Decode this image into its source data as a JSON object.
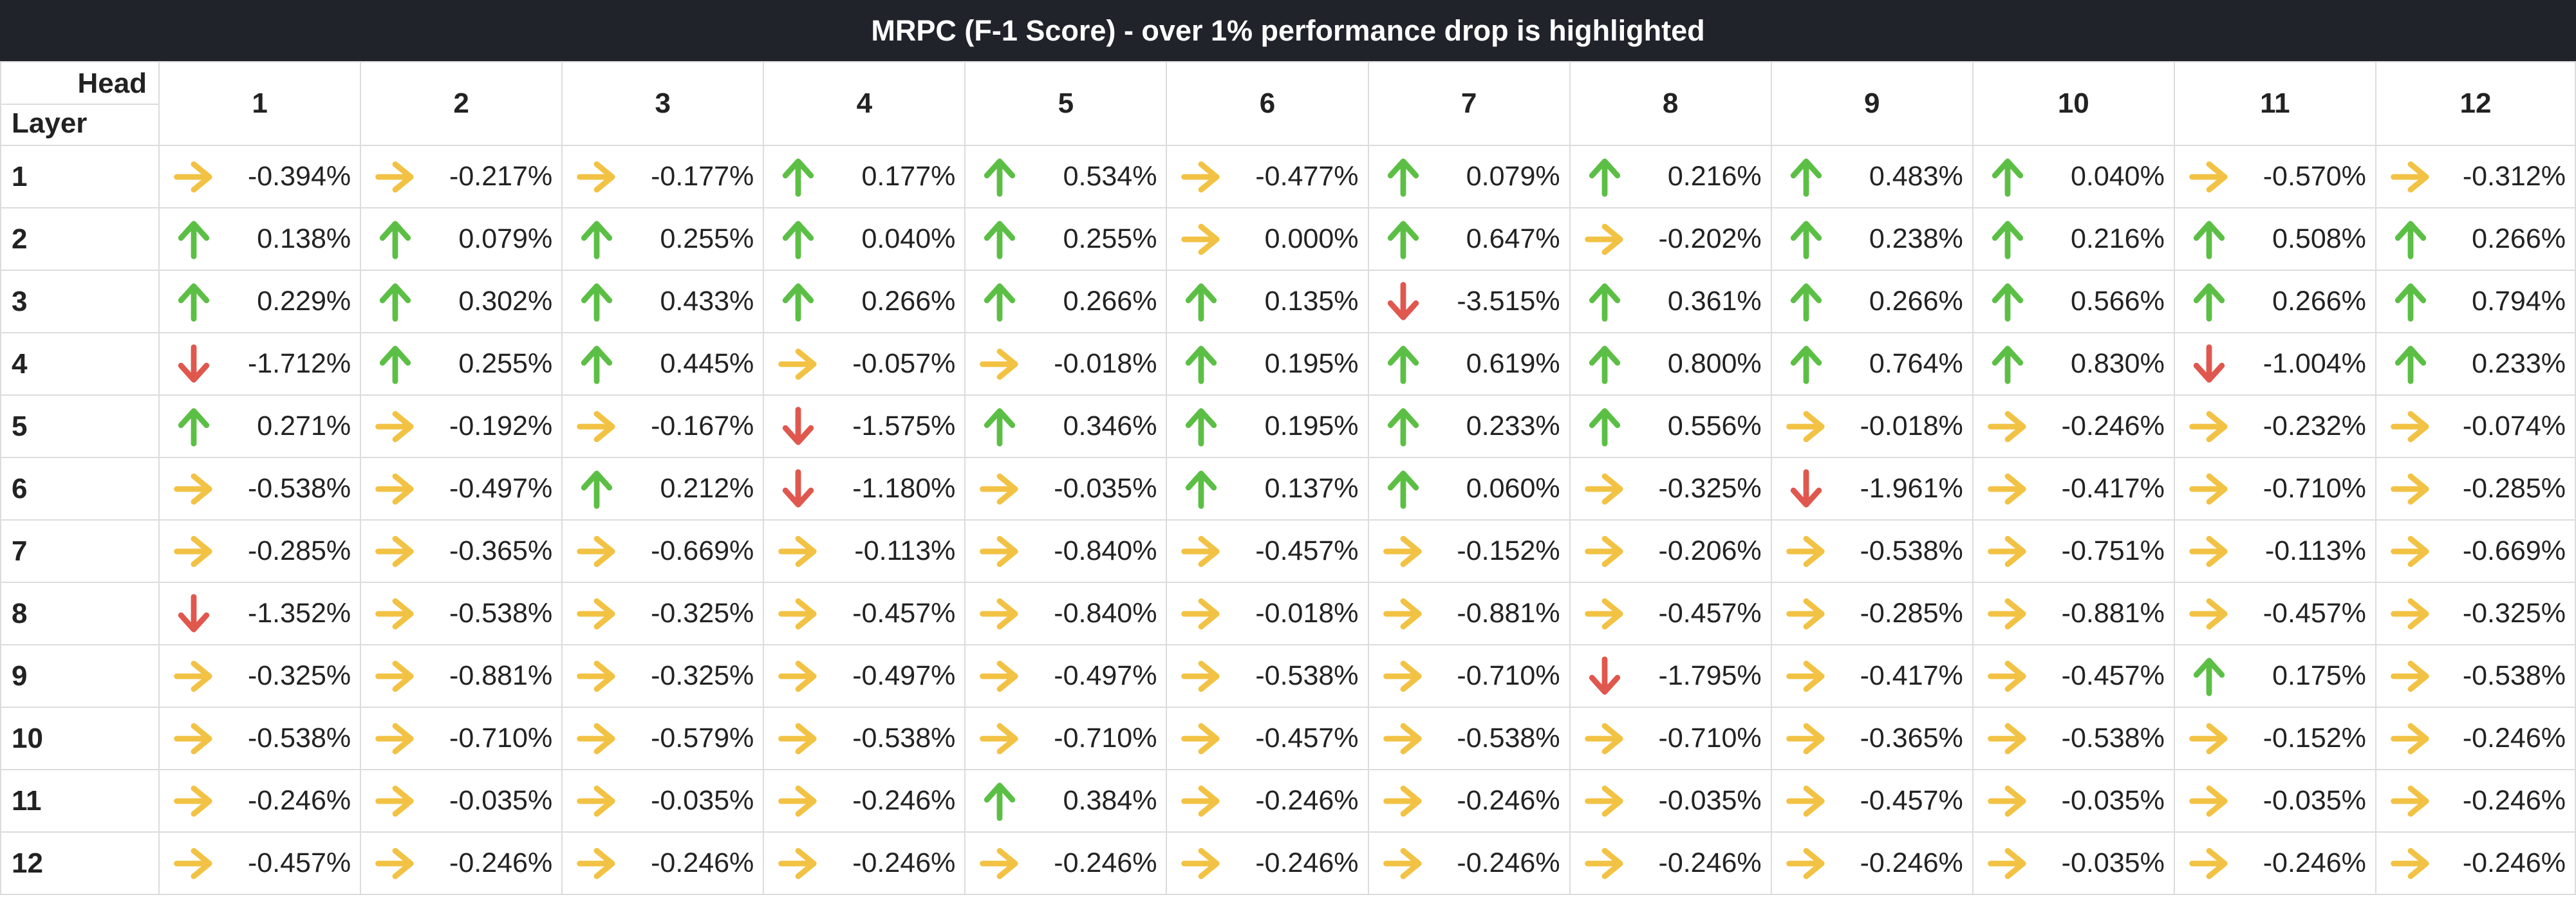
{
  "title": "MRPC (F-1 Score) - over 1% performance drop is highlighted",
  "corner": {
    "head": "Head",
    "layer": "Layer"
  },
  "colors": {
    "up": "#5cbf45",
    "flat": "#f2c244",
    "down": "#e0574e"
  },
  "heads": [
    "1",
    "2",
    "3",
    "4",
    "5",
    "6",
    "7",
    "8",
    "9",
    "10",
    "11",
    "12"
  ],
  "rows": [
    {
      "layer": "1",
      "cells": [
        {
          "icon": "right-arrow-icon",
          "value": "-0.394%"
        },
        {
          "icon": "right-arrow-icon",
          "value": "-0.217%"
        },
        {
          "icon": "right-arrow-icon",
          "value": "-0.177%"
        },
        {
          "icon": "up-arrow-icon",
          "value": "0.177%"
        },
        {
          "icon": "up-arrow-icon",
          "value": "0.534%"
        },
        {
          "icon": "right-arrow-icon",
          "value": "-0.477%"
        },
        {
          "icon": "up-arrow-icon",
          "value": "0.079%"
        },
        {
          "icon": "up-arrow-icon",
          "value": "0.216%"
        },
        {
          "icon": "up-arrow-icon",
          "value": "0.483%"
        },
        {
          "icon": "up-arrow-icon",
          "value": "0.040%"
        },
        {
          "icon": "right-arrow-icon",
          "value": "-0.570%"
        },
        {
          "icon": "right-arrow-icon",
          "value": "-0.312%"
        }
      ]
    },
    {
      "layer": "2",
      "cells": [
        {
          "icon": "up-arrow-icon",
          "value": "0.138%"
        },
        {
          "icon": "up-arrow-icon",
          "value": "0.079%"
        },
        {
          "icon": "up-arrow-icon",
          "value": "0.255%"
        },
        {
          "icon": "up-arrow-icon",
          "value": "0.040%"
        },
        {
          "icon": "up-arrow-icon",
          "value": "0.255%"
        },
        {
          "icon": "right-arrow-icon",
          "value": "0.000%"
        },
        {
          "icon": "up-arrow-icon",
          "value": "0.647%"
        },
        {
          "icon": "right-arrow-icon",
          "value": "-0.202%"
        },
        {
          "icon": "up-arrow-icon",
          "value": "0.238%"
        },
        {
          "icon": "up-arrow-icon",
          "value": "0.216%"
        },
        {
          "icon": "up-arrow-icon",
          "value": "0.508%"
        },
        {
          "icon": "up-arrow-icon",
          "value": "0.266%"
        }
      ]
    },
    {
      "layer": "3",
      "cells": [
        {
          "icon": "up-arrow-icon",
          "value": "0.229%"
        },
        {
          "icon": "up-arrow-icon",
          "value": "0.302%"
        },
        {
          "icon": "up-arrow-icon",
          "value": "0.433%"
        },
        {
          "icon": "up-arrow-icon",
          "value": "0.266%"
        },
        {
          "icon": "up-arrow-icon",
          "value": "0.266%"
        },
        {
          "icon": "up-arrow-icon",
          "value": "0.135%"
        },
        {
          "icon": "down-arrow-icon",
          "value": "-3.515%"
        },
        {
          "icon": "up-arrow-icon",
          "value": "0.361%"
        },
        {
          "icon": "up-arrow-icon",
          "value": "0.266%"
        },
        {
          "icon": "up-arrow-icon",
          "value": "0.566%"
        },
        {
          "icon": "up-arrow-icon",
          "value": "0.266%"
        },
        {
          "icon": "up-arrow-icon",
          "value": "0.794%"
        }
      ]
    },
    {
      "layer": "4",
      "cells": [
        {
          "icon": "down-arrow-icon",
          "value": "-1.712%"
        },
        {
          "icon": "up-arrow-icon",
          "value": "0.255%"
        },
        {
          "icon": "up-arrow-icon",
          "value": "0.445%"
        },
        {
          "icon": "right-arrow-icon",
          "value": "-0.057%"
        },
        {
          "icon": "right-arrow-icon",
          "value": "-0.018%"
        },
        {
          "icon": "up-arrow-icon",
          "value": "0.195%"
        },
        {
          "icon": "up-arrow-icon",
          "value": "0.619%"
        },
        {
          "icon": "up-arrow-icon",
          "value": "0.800%"
        },
        {
          "icon": "up-arrow-icon",
          "value": "0.764%"
        },
        {
          "icon": "up-arrow-icon",
          "value": "0.830%"
        },
        {
          "icon": "down-arrow-icon",
          "value": "-1.004%"
        },
        {
          "icon": "up-arrow-icon",
          "value": "0.233%"
        }
      ]
    },
    {
      "layer": "5",
      "cells": [
        {
          "icon": "up-arrow-icon",
          "value": "0.271%"
        },
        {
          "icon": "right-arrow-icon",
          "value": "-0.192%"
        },
        {
          "icon": "right-arrow-icon",
          "value": "-0.167%"
        },
        {
          "icon": "down-arrow-icon",
          "value": "-1.575%"
        },
        {
          "icon": "up-arrow-icon",
          "value": "0.346%"
        },
        {
          "icon": "up-arrow-icon",
          "value": "0.195%"
        },
        {
          "icon": "up-arrow-icon",
          "value": "0.233%"
        },
        {
          "icon": "up-arrow-icon",
          "value": "0.556%"
        },
        {
          "icon": "right-arrow-icon",
          "value": "-0.018%"
        },
        {
          "icon": "right-arrow-icon",
          "value": "-0.246%"
        },
        {
          "icon": "right-arrow-icon",
          "value": "-0.232%"
        },
        {
          "icon": "right-arrow-icon",
          "value": "-0.074%"
        }
      ]
    },
    {
      "layer": "6",
      "cells": [
        {
          "icon": "right-arrow-icon",
          "value": "-0.538%"
        },
        {
          "icon": "right-arrow-icon",
          "value": "-0.497%"
        },
        {
          "icon": "up-arrow-icon",
          "value": "0.212%"
        },
        {
          "icon": "down-arrow-icon",
          "value": "-1.180%"
        },
        {
          "icon": "right-arrow-icon",
          "value": "-0.035%"
        },
        {
          "icon": "up-arrow-icon",
          "value": "0.137%"
        },
        {
          "icon": "up-arrow-icon",
          "value": "0.060%"
        },
        {
          "icon": "right-arrow-icon",
          "value": "-0.325%"
        },
        {
          "icon": "down-arrow-icon",
          "value": "-1.961%"
        },
        {
          "icon": "right-arrow-icon",
          "value": "-0.417%"
        },
        {
          "icon": "right-arrow-icon",
          "value": "-0.710%"
        },
        {
          "icon": "right-arrow-icon",
          "value": "-0.285%"
        }
      ]
    },
    {
      "layer": "7",
      "cells": [
        {
          "icon": "right-arrow-icon",
          "value": "-0.285%"
        },
        {
          "icon": "right-arrow-icon",
          "value": "-0.365%"
        },
        {
          "icon": "right-arrow-icon",
          "value": "-0.669%"
        },
        {
          "icon": "right-arrow-icon",
          "value": "-0.113%"
        },
        {
          "icon": "right-arrow-icon",
          "value": "-0.840%"
        },
        {
          "icon": "right-arrow-icon",
          "value": "-0.457%"
        },
        {
          "icon": "right-arrow-icon",
          "value": "-0.152%"
        },
        {
          "icon": "right-arrow-icon",
          "value": "-0.206%"
        },
        {
          "icon": "right-arrow-icon",
          "value": "-0.538%"
        },
        {
          "icon": "right-arrow-icon",
          "value": "-0.751%"
        },
        {
          "icon": "right-arrow-icon",
          "value": "-0.113%"
        },
        {
          "icon": "right-arrow-icon",
          "value": "-0.669%"
        }
      ]
    },
    {
      "layer": "8",
      "cells": [
        {
          "icon": "down-arrow-icon",
          "value": "-1.352%"
        },
        {
          "icon": "right-arrow-icon",
          "value": "-0.538%"
        },
        {
          "icon": "right-arrow-icon",
          "value": "-0.325%"
        },
        {
          "icon": "right-arrow-icon",
          "value": "-0.457%"
        },
        {
          "icon": "right-arrow-icon",
          "value": "-0.840%"
        },
        {
          "icon": "right-arrow-icon",
          "value": "-0.018%"
        },
        {
          "icon": "right-arrow-icon",
          "value": "-0.881%"
        },
        {
          "icon": "right-arrow-icon",
          "value": "-0.457%"
        },
        {
          "icon": "right-arrow-icon",
          "value": "-0.285%"
        },
        {
          "icon": "right-arrow-icon",
          "value": "-0.881%"
        },
        {
          "icon": "right-arrow-icon",
          "value": "-0.457%"
        },
        {
          "icon": "right-arrow-icon",
          "value": "-0.325%"
        }
      ]
    },
    {
      "layer": "9",
      "cells": [
        {
          "icon": "right-arrow-icon",
          "value": "-0.325%"
        },
        {
          "icon": "right-arrow-icon",
          "value": "-0.881%"
        },
        {
          "icon": "right-arrow-icon",
          "value": "-0.325%"
        },
        {
          "icon": "right-arrow-icon",
          "value": "-0.497%"
        },
        {
          "icon": "right-arrow-icon",
          "value": "-0.497%"
        },
        {
          "icon": "right-arrow-icon",
          "value": "-0.538%"
        },
        {
          "icon": "right-arrow-icon",
          "value": "-0.710%"
        },
        {
          "icon": "down-arrow-icon",
          "value": "-1.795%"
        },
        {
          "icon": "right-arrow-icon",
          "value": "-0.417%"
        },
        {
          "icon": "right-arrow-icon",
          "value": "-0.457%"
        },
        {
          "icon": "up-arrow-icon",
          "value": "0.175%"
        },
        {
          "icon": "right-arrow-icon",
          "value": "-0.538%"
        }
      ]
    },
    {
      "layer": "10",
      "cells": [
        {
          "icon": "right-arrow-icon",
          "value": "-0.538%"
        },
        {
          "icon": "right-arrow-icon",
          "value": "-0.710%"
        },
        {
          "icon": "right-arrow-icon",
          "value": "-0.579%"
        },
        {
          "icon": "right-arrow-icon",
          "value": "-0.538%"
        },
        {
          "icon": "right-arrow-icon",
          "value": "-0.710%"
        },
        {
          "icon": "right-arrow-icon",
          "value": "-0.457%"
        },
        {
          "icon": "right-arrow-icon",
          "value": "-0.538%"
        },
        {
          "icon": "right-arrow-icon",
          "value": "-0.710%"
        },
        {
          "icon": "right-arrow-icon",
          "value": "-0.365%"
        },
        {
          "icon": "right-arrow-icon",
          "value": "-0.538%"
        },
        {
          "icon": "right-arrow-icon",
          "value": "-0.152%"
        },
        {
          "icon": "right-arrow-icon",
          "value": "-0.246%"
        }
      ]
    },
    {
      "layer": "11",
      "cells": [
        {
          "icon": "right-arrow-icon",
          "value": "-0.246%"
        },
        {
          "icon": "right-arrow-icon",
          "value": "-0.035%"
        },
        {
          "icon": "right-arrow-icon",
          "value": "-0.035%"
        },
        {
          "icon": "right-arrow-icon",
          "value": "-0.246%"
        },
        {
          "icon": "up-arrow-icon",
          "value": "0.384%"
        },
        {
          "icon": "right-arrow-icon",
          "value": "-0.246%"
        },
        {
          "icon": "right-arrow-icon",
          "value": "-0.246%"
        },
        {
          "icon": "right-arrow-icon",
          "value": "-0.035%"
        },
        {
          "icon": "right-arrow-icon",
          "value": "-0.457%"
        },
        {
          "icon": "right-arrow-icon",
          "value": "-0.035%"
        },
        {
          "icon": "right-arrow-icon",
          "value": "-0.035%"
        },
        {
          "icon": "right-arrow-icon",
          "value": "-0.246%"
        }
      ]
    },
    {
      "layer": "12",
      "cells": [
        {
          "icon": "right-arrow-icon",
          "value": "-0.457%"
        },
        {
          "icon": "right-arrow-icon",
          "value": "-0.246%"
        },
        {
          "icon": "right-arrow-icon",
          "value": "-0.246%"
        },
        {
          "icon": "right-arrow-icon",
          "value": "-0.246%"
        },
        {
          "icon": "right-arrow-icon",
          "value": "-0.246%"
        },
        {
          "icon": "right-arrow-icon",
          "value": "-0.246%"
        },
        {
          "icon": "right-arrow-icon",
          "value": "-0.246%"
        },
        {
          "icon": "right-arrow-icon",
          "value": "-0.246%"
        },
        {
          "icon": "right-arrow-icon",
          "value": "-0.246%"
        },
        {
          "icon": "right-arrow-icon",
          "value": "-0.035%"
        },
        {
          "icon": "right-arrow-icon",
          "value": "-0.246%"
        },
        {
          "icon": "right-arrow-icon",
          "value": "-0.246%"
        }
      ]
    }
  ]
}
